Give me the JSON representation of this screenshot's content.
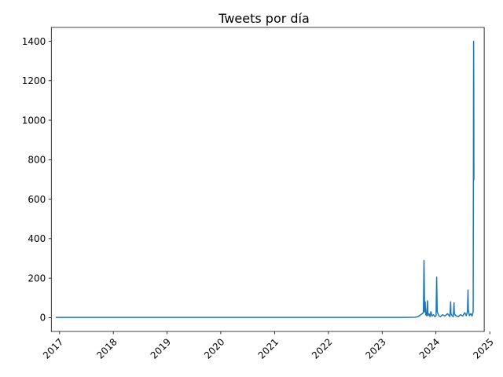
{
  "chart_data": {
    "type": "line",
    "title": "Tweets por día",
    "xlabel": "",
    "ylabel": "",
    "grid": false,
    "legend": false,
    "color": "#1f77b4",
    "x_axis": {
      "kind": "date",
      "range": [
        "2016-11-06",
        "2024-11-24"
      ],
      "ticks": [
        {
          "date": "2017-01-01",
          "label": "2017"
        },
        {
          "date": "2018-01-01",
          "label": "2018"
        },
        {
          "date": "2019-01-01",
          "label": "2019"
        },
        {
          "date": "2020-01-01",
          "label": "2020"
        },
        {
          "date": "2021-01-01",
          "label": "2021"
        },
        {
          "date": "2022-01-01",
          "label": "2022"
        },
        {
          "date": "2023-01-01",
          "label": "2023"
        },
        {
          "date": "2024-01-01",
          "label": "2024"
        },
        {
          "date": "2025-01-01",
          "label": "2025"
        }
      ],
      "tick_label_rotation": 45
    },
    "y_axis": {
      "range": [
        -70,
        1470
      ],
      "ticks": [
        {
          "value": 0,
          "label": "0"
        },
        {
          "value": 200,
          "label": "200"
        },
        {
          "value": 400,
          "label": "400"
        },
        {
          "value": 600,
          "label": "600"
        },
        {
          "value": 800,
          "label": "800"
        },
        {
          "value": 1000,
          "label": "1000"
        },
        {
          "value": 1200,
          "label": "1200"
        },
        {
          "value": 1400,
          "label": "1400"
        }
      ]
    },
    "series": [
      {
        "points": [
          [
            "2016-12-10",
            1
          ],
          [
            "2017-06-01",
            1
          ],
          [
            "2018-06-01",
            1
          ],
          [
            "2019-06-01",
            1
          ],
          [
            "2020-06-01",
            1
          ],
          [
            "2021-06-01",
            1
          ],
          [
            "2022-06-01",
            1
          ],
          [
            "2023-06-01",
            1
          ],
          [
            "2023-08-15",
            2
          ],
          [
            "2023-09-01",
            5
          ],
          [
            "2023-09-15",
            12
          ],
          [
            "2023-09-30",
            20
          ],
          [
            "2023-10-08",
            25
          ],
          [
            "2023-10-12",
            290
          ],
          [
            "2023-10-14",
            180
          ],
          [
            "2023-10-16",
            30
          ],
          [
            "2023-10-20",
            80
          ],
          [
            "2023-10-24",
            15
          ],
          [
            "2023-10-30",
            10
          ],
          [
            "2023-11-05",
            85
          ],
          [
            "2023-11-08",
            10
          ],
          [
            "2023-11-15",
            20
          ],
          [
            "2023-11-22",
            5
          ],
          [
            "2023-11-28",
            30
          ],
          [
            "2023-12-05",
            8
          ],
          [
            "2023-12-15",
            15
          ],
          [
            "2023-12-25",
            5
          ],
          [
            "2024-01-02",
            10
          ],
          [
            "2024-01-06",
            205
          ],
          [
            "2024-01-08",
            120
          ],
          [
            "2024-01-10",
            30
          ],
          [
            "2024-01-20",
            10
          ],
          [
            "2024-02-01",
            5
          ],
          [
            "2024-02-15",
            15
          ],
          [
            "2024-03-01",
            8
          ],
          [
            "2024-03-20",
            20
          ],
          [
            "2024-04-05",
            5
          ],
          [
            "2024-04-10",
            80
          ],
          [
            "2024-04-12",
            20
          ],
          [
            "2024-04-20",
            10
          ],
          [
            "2024-04-28",
            5
          ],
          [
            "2024-05-03",
            75
          ],
          [
            "2024-05-05",
            20
          ],
          [
            "2024-05-15",
            10
          ],
          [
            "2024-06-01",
            5
          ],
          [
            "2024-06-15",
            15
          ],
          [
            "2024-07-01",
            8
          ],
          [
            "2024-07-15",
            25
          ],
          [
            "2024-07-25",
            10
          ],
          [
            "2024-08-02",
            30
          ],
          [
            "2024-08-06",
            140
          ],
          [
            "2024-08-08",
            40
          ],
          [
            "2024-08-15",
            10
          ],
          [
            "2024-08-25",
            20
          ],
          [
            "2024-09-02",
            8
          ],
          [
            "2024-09-10",
            30
          ],
          [
            "2024-09-13",
            1400
          ],
          [
            "2024-09-14",
            1200
          ],
          [
            "2024-09-15",
            700
          ]
        ]
      }
    ]
  }
}
